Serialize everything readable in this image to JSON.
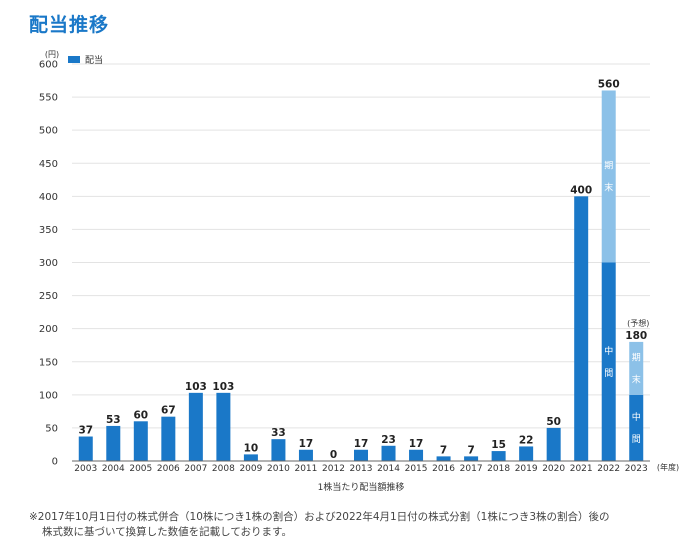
{
  "page": {
    "title": "配当推移"
  },
  "footnote": {
    "line1": "※2017年10月1日付の株式併合（10株につき1株の割合）および2022年4月1日付の株式分割（1株につき3株の割合）後の",
    "line2": "株式数に基づいて換算した数値を記載しております。"
  },
  "chart_data": {
    "type": "bar",
    "title": "1株当たり配当額推移",
    "ylabel": "(円)",
    "xlabel": "(年度)",
    "ylim": [
      0,
      600
    ],
    "yticks": [
      0,
      50,
      100,
      150,
      200,
      250,
      300,
      350,
      400,
      450,
      500,
      550,
      600
    ],
    "grid": true,
    "legend": {
      "position": "top-left",
      "label": "配当"
    },
    "categories": [
      "2003",
      "2004",
      "2005",
      "2006",
      "2007",
      "2008",
      "2009",
      "2010",
      "2011",
      "2012",
      "2013",
      "2014",
      "2015",
      "2016",
      "2017",
      "2018",
      "2019",
      "2020",
      "2021",
      "2022",
      "2023"
    ],
    "values": [
      37,
      53,
      60,
      67,
      103,
      103,
      10,
      33,
      17,
      0,
      17,
      23,
      17,
      7,
      7,
      15,
      22,
      50,
      400,
      560,
      180
    ],
    "stacked_breakdown": [
      {
        "category": "2022",
        "interim": 300,
        "final": 260,
        "interim_label": "中間",
        "final_label": "期末"
      },
      {
        "category": "2023",
        "interim": 100,
        "final": 80,
        "interim_label": "中間",
        "final_label": "期末",
        "note": "(予想)"
      }
    ],
    "colors": {
      "bar": "#1a78c8",
      "final": "#8cc1e8",
      "grid": "#e3e3e3",
      "axis": "#666666"
    }
  }
}
